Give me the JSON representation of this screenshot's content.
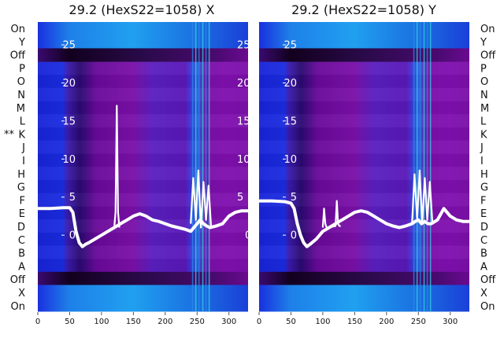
{
  "chart_data": [
    {
      "type": "heatmap",
      "title": "29.2 (HexS22=1058) X",
      "xlim": [
        0,
        330
      ],
      "ylim": [
        -10,
        28
      ],
      "x_ticks": [
        0,
        50,
        100,
        150,
        200,
        250,
        300
      ],
      "y_ticks": [
        0,
        5,
        10,
        15,
        20,
        25
      ],
      "row_labels": [
        "On",
        "Y",
        "Off",
        "P",
        "O",
        "N",
        "M",
        "L",
        "K",
        "J",
        "I",
        "H",
        "G",
        "F",
        "E",
        "D",
        "C",
        "B",
        "A",
        "Off",
        "X",
        "On"
      ],
      "row_label_side": "left",
      "marker": "**",
      "marker_row": "K",
      "series": [
        {
          "x": [
            0,
            20,
            40,
            50,
            55,
            60,
            65,
            70,
            75,
            80,
            90,
            100,
            110,
            120,
            130,
            140,
            150,
            160,
            170,
            180,
            190,
            200,
            210,
            220,
            230,
            240,
            245,
            250,
            255,
            260,
            265,
            270,
            280,
            290,
            300,
            310,
            320,
            330
          ],
          "values": [
            3.5,
            3.5,
            3.6,
            3.6,
            3.0,
            0.5,
            -1.0,
            -1.5,
            -1.2,
            -1.0,
            -0.5,
            0.0,
            0.5,
            1.0,
            1.5,
            2.0,
            2.5,
            2.8,
            2.5,
            2.0,
            1.8,
            1.5,
            1.2,
            1.0,
            0.8,
            0.5,
            1.0,
            1.5,
            2.0,
            1.5,
            1.2,
            1.0,
            1.2,
            1.5,
            2.5,
            3.0,
            3.2,
            3.2
          ]
        },
        {
          "x": [
            120,
            122,
            124,
            126,
            128
          ],
          "values": [
            1.0,
            3.0,
            17.0,
            3.0,
            1.0
          ]
        },
        {
          "x": [
            240,
            244,
            248,
            252,
            256,
            260,
            264,
            268,
            272
          ],
          "values": [
            1.5,
            7.5,
            2.0,
            8.5,
            1.0,
            7.0,
            2.0,
            6.5,
            1.0
          ]
        }
      ]
    },
    {
      "type": "heatmap",
      "title": "29.2 (HexS22=1058) Y",
      "xlim": [
        0,
        330
      ],
      "ylim": [
        -10,
        28
      ],
      "x_ticks": [
        0,
        50,
        100,
        150,
        200,
        250,
        300
      ],
      "y_ticks": [
        0,
        5,
        10,
        15,
        20,
        25
      ],
      "row_labels": [
        "On",
        "Y",
        "Off",
        "P",
        "O",
        "N",
        "M",
        "L",
        "K",
        "J",
        "I",
        "H",
        "G",
        "F",
        "E",
        "D",
        "C",
        "B",
        "A",
        "Off",
        "X",
        "On"
      ],
      "row_label_side": "right",
      "series": [
        {
          "x": [
            0,
            20,
            40,
            50,
            55,
            60,
            65,
            70,
            75,
            80,
            90,
            100,
            110,
            120,
            130,
            140,
            150,
            160,
            170,
            180,
            190,
            200,
            210,
            220,
            230,
            240,
            245,
            250,
            255,
            260,
            265,
            270,
            280,
            290,
            300,
            310,
            320,
            330
          ],
          "values": [
            4.5,
            4.5,
            4.4,
            4.2,
            3.5,
            1.5,
            0.0,
            -1.0,
            -1.5,
            -1.2,
            -0.5,
            0.5,
            1.0,
            1.5,
            2.0,
            2.5,
            3.0,
            3.2,
            3.0,
            2.5,
            2.0,
            1.5,
            1.2,
            1.0,
            1.2,
            1.5,
            1.8,
            2.0,
            1.5,
            1.8,
            1.5,
            1.5,
            2.0,
            3.5,
            2.5,
            2.0,
            1.8,
            1.8
          ]
        },
        {
          "x": [
            100,
            102,
            104,
            106,
            108,
            120,
            122,
            124,
            126,
            128
          ],
          "values": [
            1.0,
            3.5,
            1.5,
            1.0,
            1.0,
            1.2,
            4.5,
            1.5,
            1.2,
            1.2
          ]
        },
        {
          "x": [
            240,
            244,
            248,
            252,
            256,
            260,
            264,
            268,
            272
          ],
          "values": [
            1.5,
            8.0,
            2.0,
            8.5,
            1.5,
            7.5,
            2.0,
            7.0,
            1.5
          ]
        }
      ]
    }
  ]
}
